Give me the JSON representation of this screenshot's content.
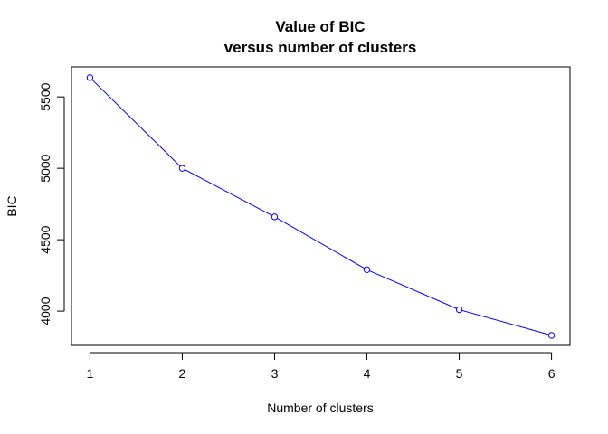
{
  "chart_data": {
    "type": "line",
    "title": "Value of BIC",
    "subtitle": "versus number of clusters",
    "xlabel": "Number of clusters",
    "ylabel": "BIC",
    "x": [
      1,
      2,
      3,
      4,
      5,
      6
    ],
    "series": [
      {
        "values": [
          5635,
          5000,
          4660,
          4290,
          4010,
          3830
        ],
        "color": "#0000ff",
        "marker": "circle"
      }
    ],
    "x_ticks": [
      1,
      2,
      3,
      4,
      5,
      6
    ],
    "y_ticks": [
      4000,
      4500,
      5000,
      5500
    ],
    "xlim": [
      0.8,
      6.2
    ],
    "ylim": [
      3760,
      5710
    ],
    "grid": false,
    "axis_color": "#000000"
  }
}
